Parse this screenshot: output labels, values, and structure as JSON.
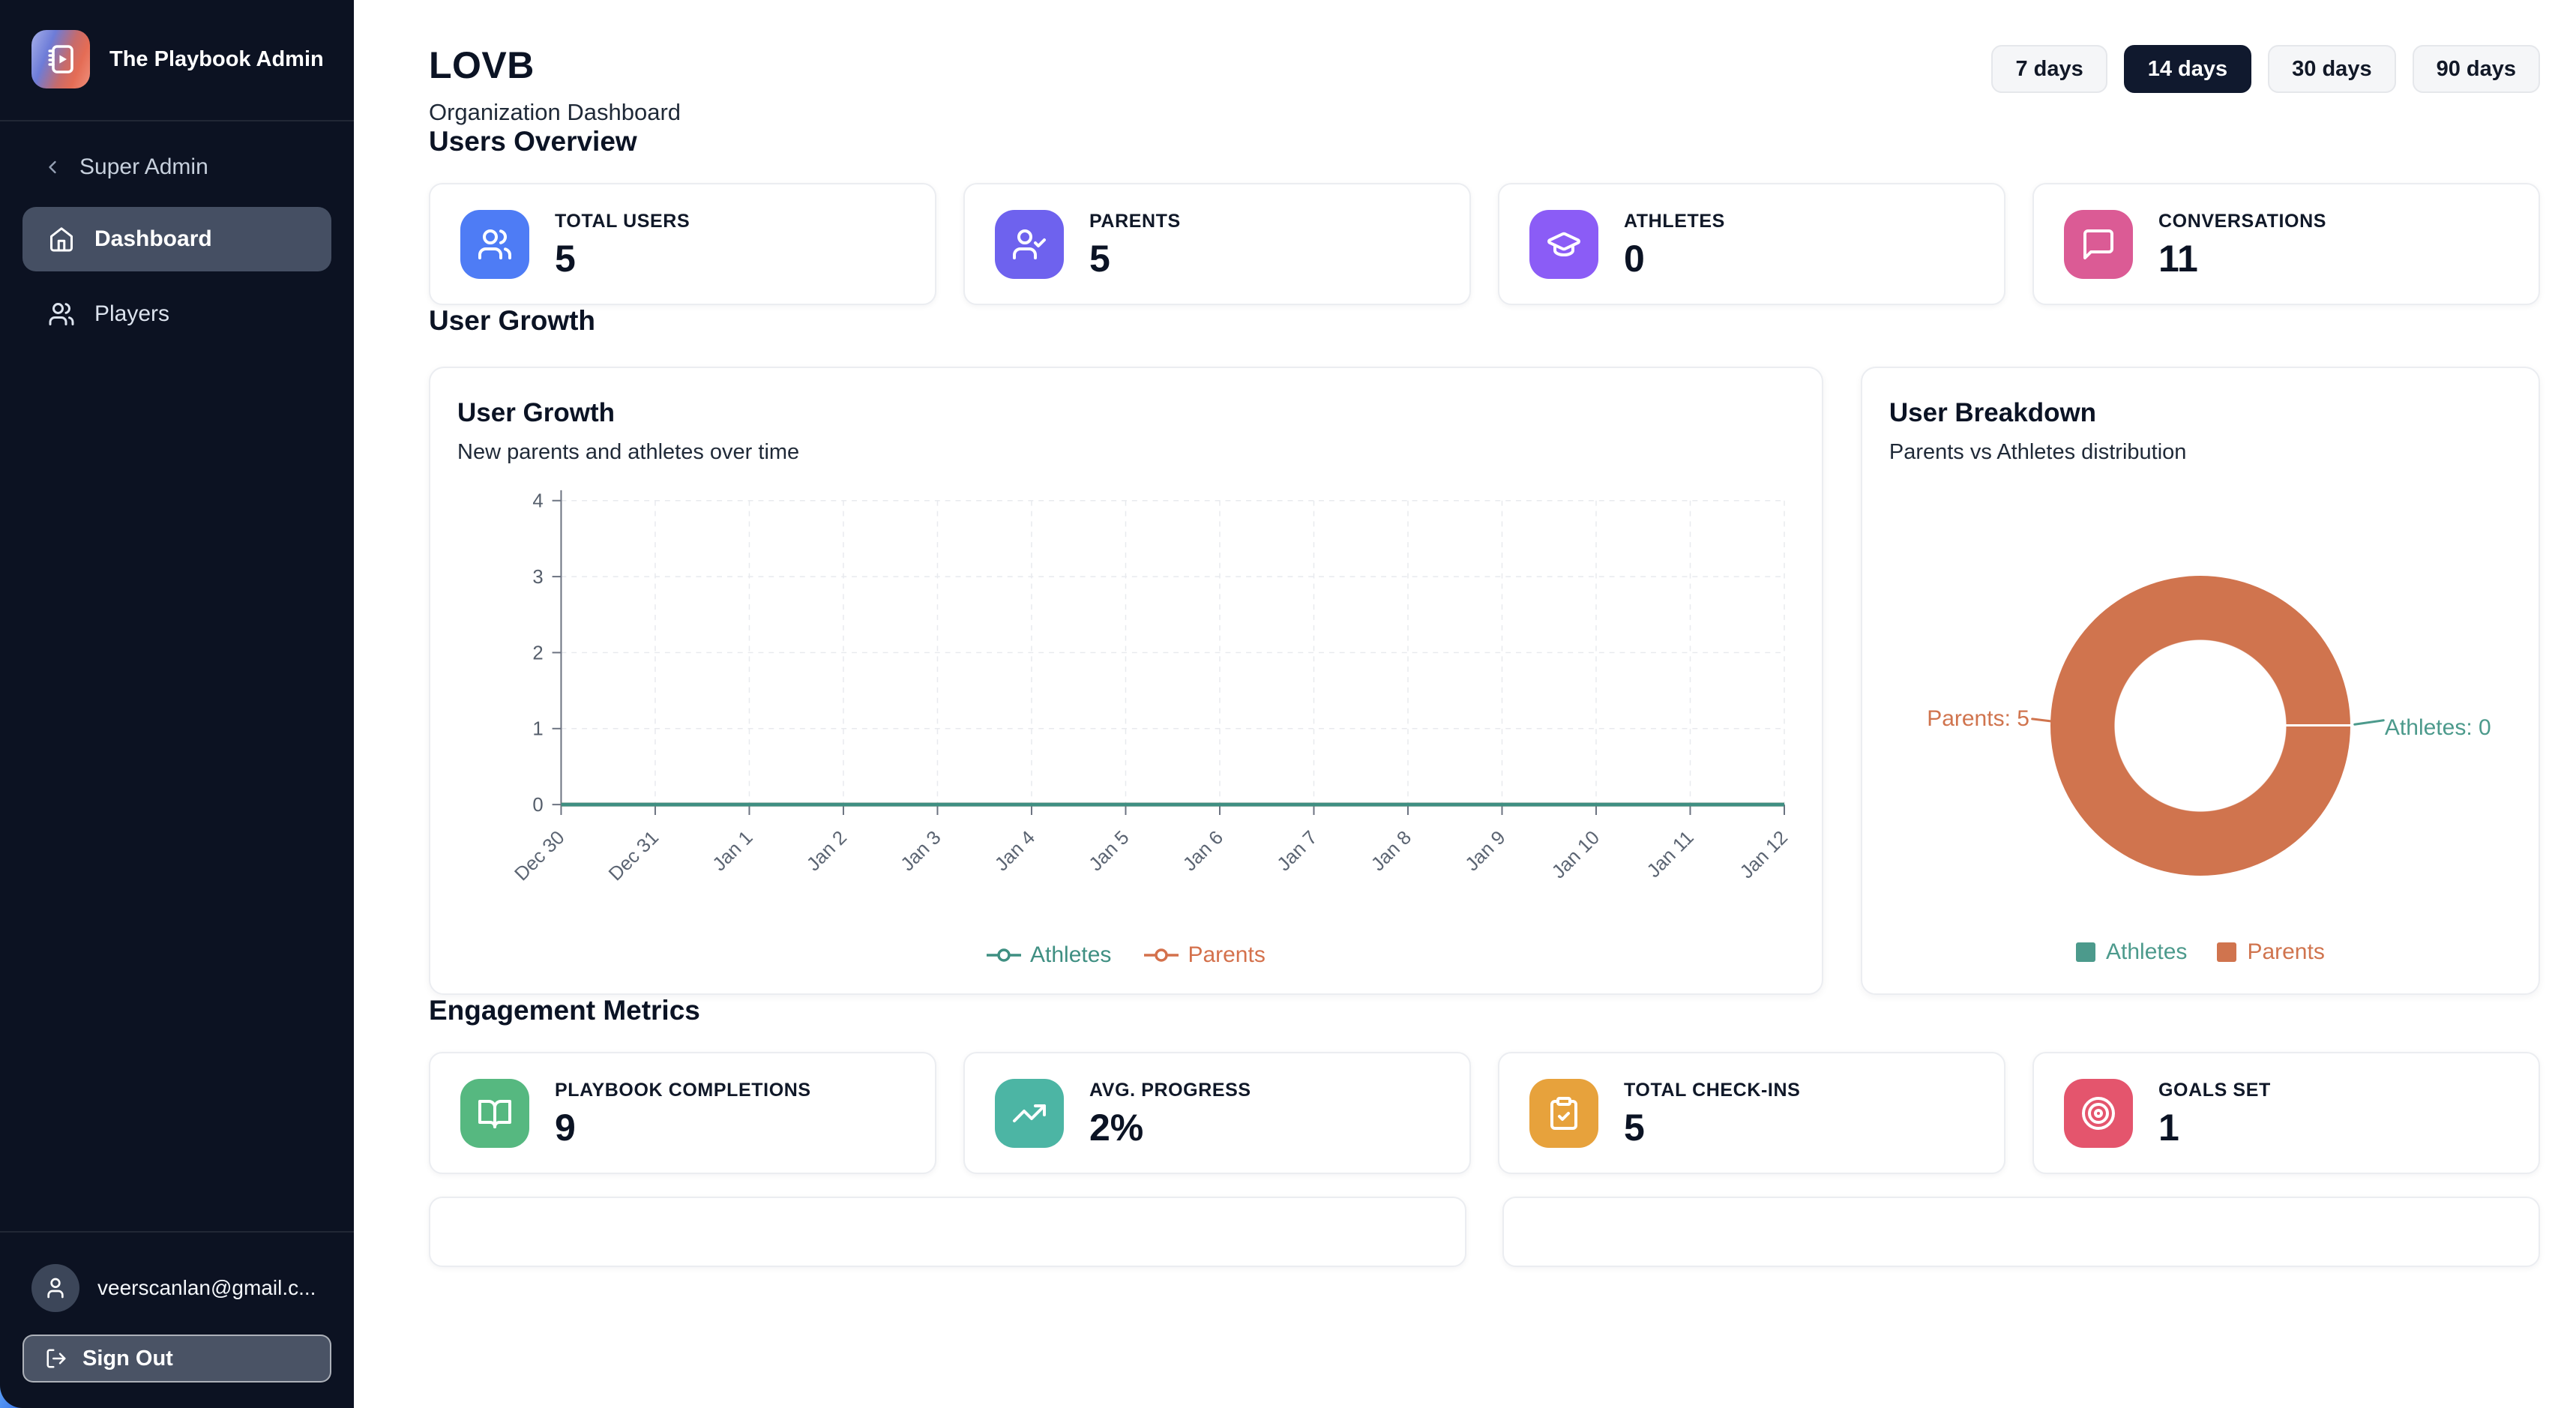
{
  "sidebar": {
    "app_title": "The Playbook Admin",
    "back_label": "Super Admin",
    "nav": [
      {
        "label": "Dashboard",
        "icon": "home-icon",
        "active": true
      },
      {
        "label": "Players",
        "icon": "users-icon",
        "active": false
      }
    ],
    "user_email": "veerscanlan@gmail.c...",
    "sign_out_label": "Sign Out"
  },
  "header": {
    "title": "LOVB",
    "subtitle": "Organization Dashboard",
    "ranges": [
      "7 days",
      "14 days",
      "30 days",
      "90 days"
    ],
    "selected_range": "14 days"
  },
  "sections": {
    "users_overview": "Users Overview",
    "user_growth": "User Growth",
    "engagement_metrics": "Engagement Metrics"
  },
  "users_stats": [
    {
      "label": "TOTAL USERS",
      "value": "5",
      "icon": "users-icon",
      "color": "#4E7CF5"
    },
    {
      "label": "PARENTS",
      "value": "5",
      "icon": "user-check-icon",
      "color": "#6E62EE"
    },
    {
      "label": "ATHLETES",
      "value": "0",
      "icon": "graduation-cap-icon",
      "color": "#8B5CF6"
    },
    {
      "label": "CONVERSATIONS",
      "value": "11",
      "icon": "message-square-icon",
      "color": "#DB5B95"
    }
  ],
  "engagement_stats": [
    {
      "label": "PLAYBOOK COMPLETIONS",
      "value": "9",
      "icon": "book-open-icon",
      "color": "#56B880"
    },
    {
      "label": "AVG. PROGRESS",
      "value": "2%",
      "icon": "trending-up-icon",
      "color": "#4CB5A4"
    },
    {
      "label": "TOTAL CHECK-INS",
      "value": "5",
      "icon": "clipboard-check-icon",
      "color": "#E7A23C"
    },
    {
      "label": "GOALS SET",
      "value": "1",
      "icon": "target-icon",
      "color": "#E4556D"
    }
  ],
  "growth_card": {
    "title": "User Growth",
    "subtitle": "New parents and athletes over time"
  },
  "breakdown_card": {
    "title": "User Breakdown",
    "subtitle": "Parents vs Athletes distribution",
    "label_parents": "Parents: 5",
    "label_athletes": "Athletes: 0"
  },
  "chart_data": [
    {
      "type": "line",
      "title": "User Growth",
      "x": [
        "Dec 30",
        "Dec 31",
        "Jan 1",
        "Jan 2",
        "Jan 3",
        "Jan 4",
        "Jan 5",
        "Jan 6",
        "Jan 7",
        "Jan 8",
        "Jan 9",
        "Jan 10",
        "Jan 11",
        "Jan 12"
      ],
      "series": [
        {
          "name": "Athletes",
          "color": "#3F8F82",
          "values": [
            0,
            0,
            0,
            0,
            0,
            0,
            0,
            0,
            0,
            0,
            0,
            0,
            0,
            0
          ]
        },
        {
          "name": "Parents",
          "color": "#D4714C",
          "values": [
            0,
            0,
            0,
            0,
            0,
            0,
            0,
            0,
            0,
            0,
            0,
            0,
            0,
            0
          ]
        }
      ],
      "ylim": [
        0,
        4
      ],
      "yticks": [
        0,
        1,
        2,
        3,
        4
      ],
      "grid": true,
      "legend_position": "bottom"
    },
    {
      "type": "pie",
      "donut": true,
      "title": "User Breakdown",
      "labels": [
        "Athletes",
        "Parents"
      ],
      "values": [
        0,
        5
      ],
      "colors": [
        "#4C9A8C",
        "#D0744E"
      ],
      "legend_position": "bottom"
    }
  ]
}
